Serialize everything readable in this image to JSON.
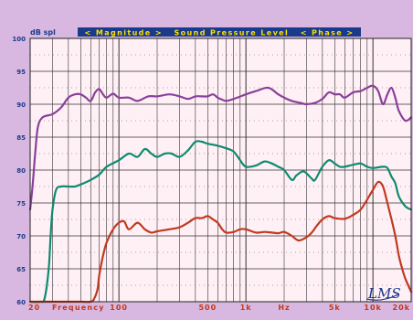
{
  "chart_data": {
    "type": "line",
    "title_banner": "< Magnitude >   Sound Pressure Level   < Phase >",
    "ylabel": "dB spl",
    "xlabel": "Frequency",
    "x_scale": "log",
    "xlim": [
      20,
      20000
    ],
    "ylim": [
      60,
      100
    ],
    "y_ticks": [
      "60",
      "65",
      "70",
      "75",
      "80",
      "85",
      "90",
      "95",
      "100"
    ],
    "x_tick_labels": [
      {
        "x": 20,
        "label": "20"
      },
      {
        "x": 100,
        "label": "100"
      },
      {
        "x": 500,
        "label": "500"
      },
      {
        "x": 1000,
        "label": "1k"
      },
      {
        "x": 2000,
        "label": "Hz"
      },
      {
        "x": 5000,
        "label": "5k"
      },
      {
        "x": 10000,
        "label": "10k"
      },
      {
        "x": 20000,
        "label": "20k"
      }
    ],
    "grid": true,
    "background_color": "#fff0f5",
    "page_color": "#d8b8e0",
    "banner_color": "#1a3a8a",
    "banner_text_color": "#ffe000",
    "signature": "LMS",
    "series": [
      {
        "color": "#8a3f9a",
        "points": [
          [
            20,
            74
          ],
          [
            21,
            78
          ],
          [
            22,
            83
          ],
          [
            23,
            86.5
          ],
          [
            25,
            88
          ],
          [
            30,
            88.5
          ],
          [
            35,
            89.5
          ],
          [
            40,
            91
          ],
          [
            45,
            91.5
          ],
          [
            50,
            91.5
          ],
          [
            55,
            91
          ],
          [
            60,
            90.5
          ],
          [
            65,
            91.8
          ],
          [
            70,
            92.3
          ],
          [
            75,
            91.5
          ],
          [
            80,
            91
          ],
          [
            90,
            91.6
          ],
          [
            100,
            91
          ],
          [
            120,
            91
          ],
          [
            140,
            90.5
          ],
          [
            170,
            91.2
          ],
          [
            200,
            91.2
          ],
          [
            250,
            91.5
          ],
          [
            300,
            91.2
          ],
          [
            350,
            90.8
          ],
          [
            400,
            91.2
          ],
          [
            450,
            91.2
          ],
          [
            500,
            91.2
          ],
          [
            550,
            91.5
          ],
          [
            600,
            91
          ],
          [
            650,
            90.7
          ],
          [
            700,
            90.5
          ],
          [
            800,
            90.8
          ],
          [
            1000,
            91.5
          ],
          [
            1200,
            92
          ],
          [
            1500,
            92.5
          ],
          [
            1800,
            91.5
          ],
          [
            2000,
            91
          ],
          [
            2300,
            90.5
          ],
          [
            2700,
            90.2
          ],
          [
            3000,
            90
          ],
          [
            3500,
            90.2
          ],
          [
            4000,
            90.8
          ],
          [
            4500,
            91.8
          ],
          [
            5000,
            91.5
          ],
          [
            5500,
            91.5
          ],
          [
            6000,
            91
          ],
          [
            7000,
            91.8
          ],
          [
            8000,
            92
          ],
          [
            9000,
            92.5
          ],
          [
            10000,
            92.8
          ],
          [
            11000,
            92
          ],
          [
            12000,
            90
          ],
          [
            13000,
            91.5
          ],
          [
            14000,
            92.5
          ],
          [
            15000,
            91
          ],
          [
            16000,
            89
          ],
          [
            18000,
            87.5
          ],
          [
            20000,
            88
          ]
        ]
      },
      {
        "color": "#0f8a6f",
        "points": [
          [
            20,
            60
          ],
          [
            24,
            60
          ],
          [
            26,
            60.5
          ],
          [
            28,
            65
          ],
          [
            29,
            70
          ],
          [
            30,
            74
          ],
          [
            32,
            77
          ],
          [
            35,
            77.5
          ],
          [
            40,
            77.5
          ],
          [
            45,
            77.5
          ],
          [
            50,
            77.8
          ],
          [
            60,
            78.5
          ],
          [
            70,
            79.3
          ],
          [
            80,
            80.5
          ],
          [
            100,
            81.5
          ],
          [
            120,
            82.5
          ],
          [
            140,
            82
          ],
          [
            160,
            83.2
          ],
          [
            180,
            82.5
          ],
          [
            200,
            82
          ],
          [
            230,
            82.5
          ],
          [
            260,
            82.5
          ],
          [
            300,
            82
          ],
          [
            350,
            83
          ],
          [
            400,
            84.3
          ],
          [
            450,
            84.3
          ],
          [
            500,
            84
          ],
          [
            600,
            83.7
          ],
          [
            700,
            83.3
          ],
          [
            800,
            82.8
          ],
          [
            900,
            81.5
          ],
          [
            1000,
            80.5
          ],
          [
            1200,
            80.7
          ],
          [
            1400,
            81.3
          ],
          [
            1600,
            81
          ],
          [
            1800,
            80.5
          ],
          [
            2000,
            80
          ],
          [
            2300,
            78.5
          ],
          [
            2500,
            79.2
          ],
          [
            2800,
            79.8
          ],
          [
            3000,
            79.5
          ],
          [
            3300,
            78.7
          ],
          [
            3500,
            78.5
          ],
          [
            4000,
            80.5
          ],
          [
            4500,
            81.5
          ],
          [
            5000,
            81
          ],
          [
            5500,
            80.5
          ],
          [
            6000,
            80.5
          ],
          [
            7000,
            80.8
          ],
          [
            8000,
            81
          ],
          [
            9000,
            80.5
          ],
          [
            10000,
            80.3
          ],
          [
            12000,
            80.5
          ],
          [
            13000,
            80.3
          ],
          [
            14000,
            79
          ],
          [
            15000,
            78
          ],
          [
            16000,
            76
          ],
          [
            18000,
            74.5
          ],
          [
            20000,
            74
          ]
        ]
      },
      {
        "color": "#c0391e",
        "points": [
          [
            20,
            60
          ],
          [
            40,
            60
          ],
          [
            50,
            60
          ],
          [
            60,
            60
          ],
          [
            64,
            60.5
          ],
          [
            68,
            62
          ],
          [
            70,
            64
          ],
          [
            75,
            67
          ],
          [
            80,
            69
          ],
          [
            90,
            71
          ],
          [
            100,
            72
          ],
          [
            110,
            72.2
          ],
          [
            120,
            71
          ],
          [
            140,
            72
          ],
          [
            160,
            71
          ],
          [
            180,
            70.5
          ],
          [
            200,
            70.7
          ],
          [
            250,
            71
          ],
          [
            300,
            71.3
          ],
          [
            350,
            72
          ],
          [
            400,
            72.7
          ],
          [
            450,
            72.7
          ],
          [
            500,
            73
          ],
          [
            550,
            72.5
          ],
          [
            600,
            72
          ],
          [
            650,
            71
          ],
          [
            700,
            70.5
          ],
          [
            800,
            70.6
          ],
          [
            900,
            71
          ],
          [
            1000,
            71
          ],
          [
            1200,
            70.5
          ],
          [
            1400,
            70.6
          ],
          [
            1600,
            70.5
          ],
          [
            1800,
            70.4
          ],
          [
            2000,
            70.6
          ],
          [
            2300,
            70
          ],
          [
            2600,
            69.3
          ],
          [
            3000,
            69.8
          ],
          [
            3300,
            70.5
          ],
          [
            3600,
            71.5
          ],
          [
            4000,
            72.5
          ],
          [
            4500,
            73
          ],
          [
            5000,
            72.7
          ],
          [
            6000,
            72.6
          ],
          [
            7000,
            73.2
          ],
          [
            8000,
            74
          ],
          [
            9000,
            75.5
          ],
          [
            10000,
            77
          ],
          [
            11000,
            78.2
          ],
          [
            12000,
            77.5
          ],
          [
            13000,
            75
          ],
          [
            14000,
            72.5
          ],
          [
            15000,
            70
          ],
          [
            16000,
            67
          ],
          [
            17000,
            65
          ],
          [
            18000,
            63.5
          ],
          [
            20000,
            61.5
          ]
        ]
      }
    ]
  }
}
